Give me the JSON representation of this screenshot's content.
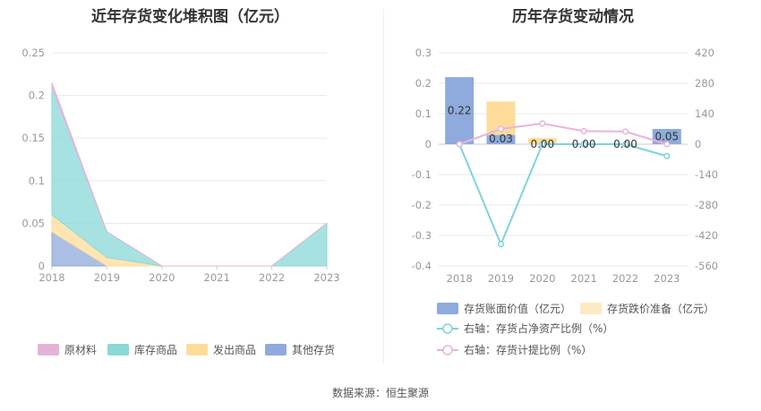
{
  "source_text": "数据来源：恒生聚源",
  "chart_data": [
    {
      "type": "area",
      "title": "近年存货变化堆积图（亿元）",
      "categories": [
        "2018",
        "2019",
        "2020",
        "2021",
        "2022",
        "2023"
      ],
      "ylim": [
        0,
        0.25
      ],
      "yticks": [
        "0",
        "0.05",
        "0.1",
        "0.15",
        "0.2",
        "0.25"
      ],
      "stacked": true,
      "series": [
        {
          "name": "其他存货",
          "color": "#8faadc",
          "values": [
            0.04,
            0.0,
            0.0,
            0.0,
            0.0,
            0.0
          ]
        },
        {
          "name": "发出商品",
          "color": "#fddc9a",
          "values": [
            0.02,
            0.01,
            0.0,
            0.0,
            0.0,
            0.0
          ]
        },
        {
          "name": "库存商品",
          "color": "#8ad8d8",
          "values": [
            0.15,
            0.03,
            0.0,
            0.0,
            0.0,
            0.05
          ]
        },
        {
          "name": "原材料",
          "color": "#e3b4d8",
          "values": [
            0.005,
            0.0,
            0.0,
            0.0,
            0.0,
            0.0
          ]
        }
      ],
      "legend": [
        "原材料",
        "库存商品",
        "发出商品",
        "其他存货"
      ],
      "grid": true
    },
    {
      "type": "bar",
      "title": "历年存货变动情况",
      "categories": [
        "2018",
        "2019",
        "2020",
        "2021",
        "2022",
        "2023"
      ],
      "ylim": [
        -0.4,
        0.3
      ],
      "yticks": [
        "-0.4",
        "-0.3",
        "-0.2",
        "-0.1",
        "0",
        "0.1",
        "0.2",
        "0.3"
      ],
      "y2lim": [
        -560,
        420
      ],
      "y2ticks": [
        "-560",
        "-420",
        "-280",
        "-140",
        "0",
        "140",
        "280",
        "420"
      ],
      "bars": [
        {
          "name": "存货账面价值（亿元）",
          "color": "#8faadc",
          "values": [
            0.22,
            0.03,
            0.0,
            0.0,
            0.0,
            0.05
          ],
          "labels": [
            "0.22",
            "0.03",
            "0.00",
            "0.00",
            "0.00",
            "0.05"
          ]
        },
        {
          "name": "存货跌价准备（亿元）",
          "color": "#fddc9a",
          "values": [
            0.0,
            0.14,
            0.02,
            0.0,
            0.0,
            0.0
          ]
        }
      ],
      "lines": [
        {
          "name": "右轴：存货占净资产比例（%）",
          "color": "#7fd3dc",
          "values": [
            0,
            -460,
            0,
            0,
            0,
            -55
          ]
        },
        {
          "name": "右轴：存货计提比例（%）",
          "color": "#e6b5dc",
          "values": [
            0,
            70,
            95,
            60,
            58,
            0
          ]
        }
      ],
      "grid": true
    }
  ]
}
